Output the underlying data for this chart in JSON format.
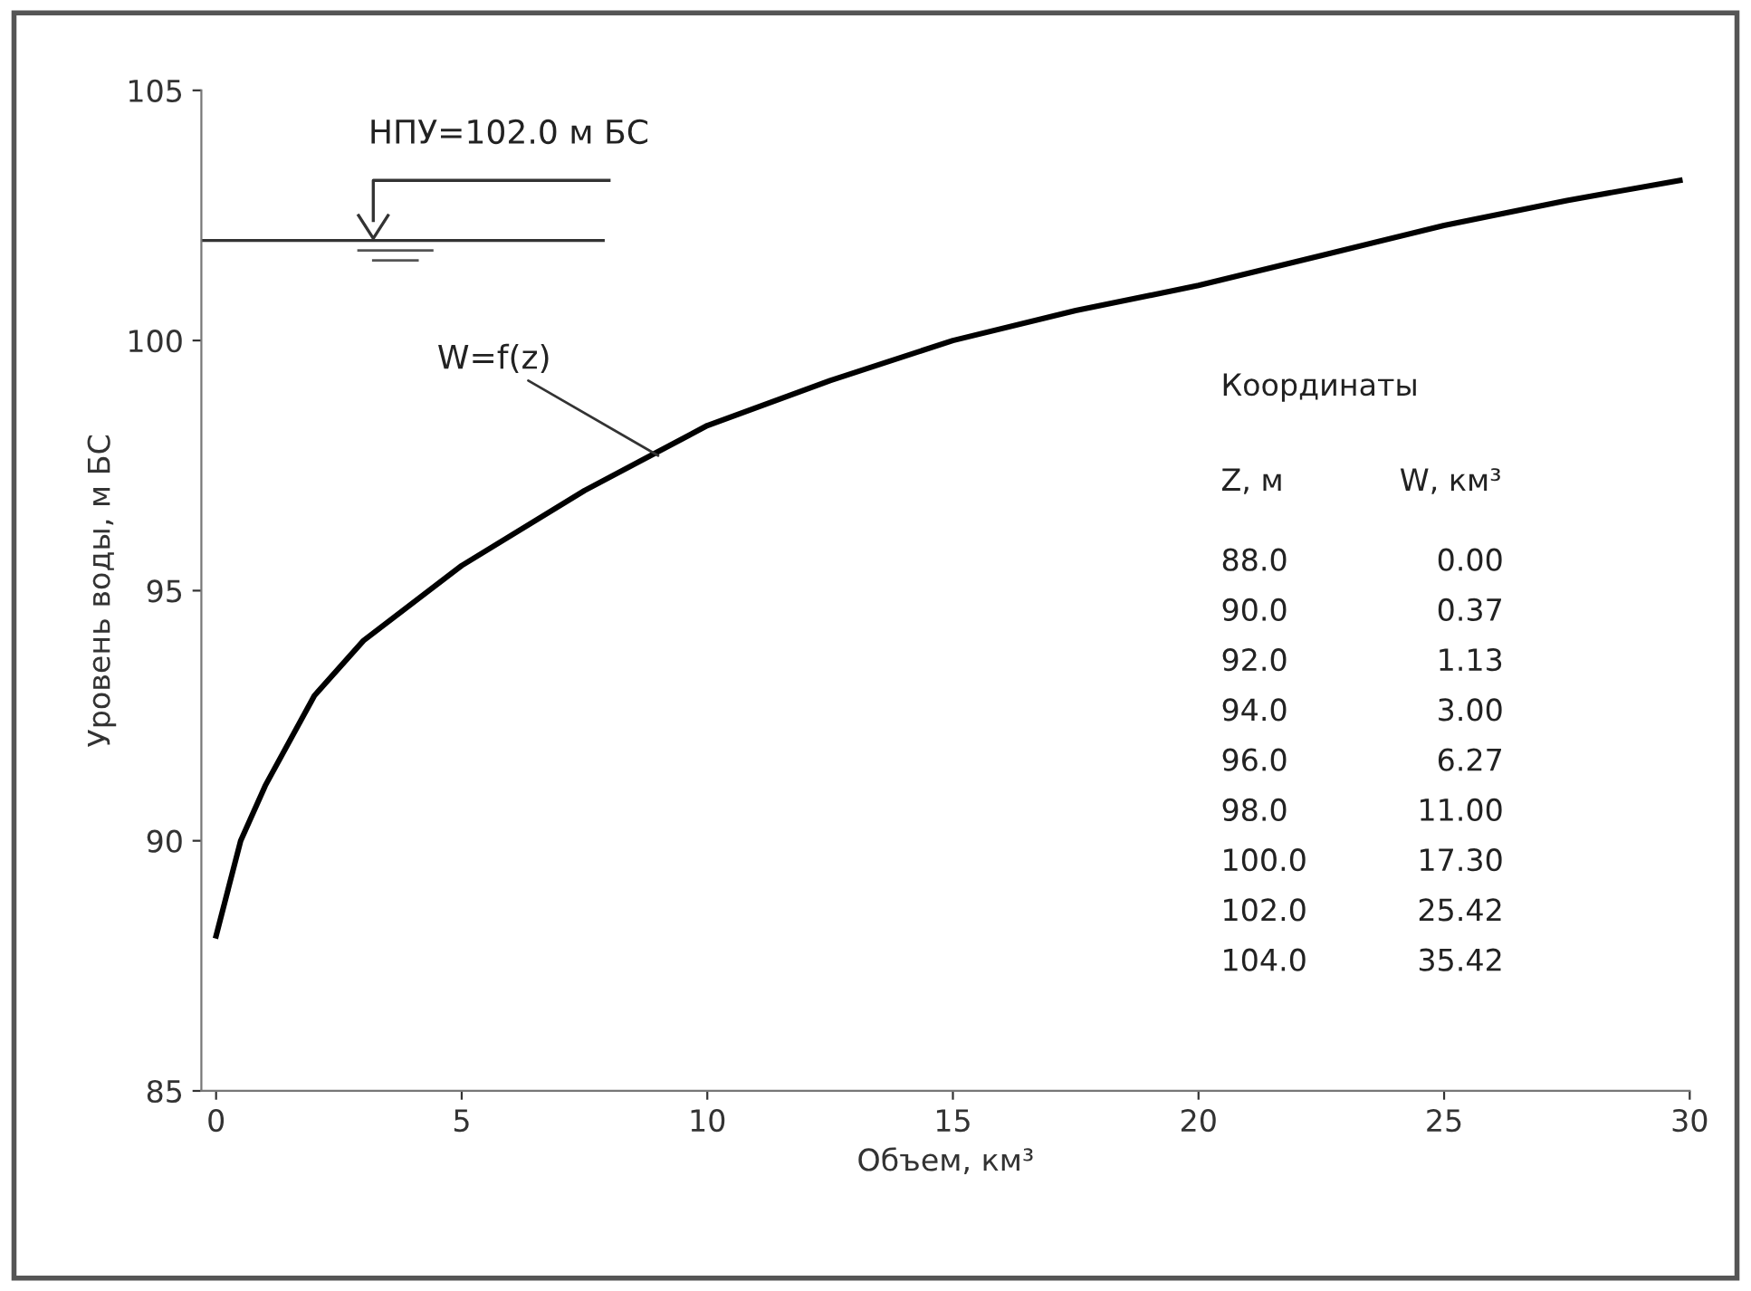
{
  "chart_data": {
    "type": "line",
    "xlabel": "Объем, км³",
    "ylabel": "Уровень воды, м БС",
    "x": [
      0,
      0.5,
      1,
      2,
      3,
      5,
      7.5,
      10,
      12.5,
      15,
      17.5,
      20,
      22.5,
      25,
      27.5,
      29.8
    ],
    "series": [
      {
        "color": "#000000",
        "values": [
          88.1,
          90.0,
          91.1,
          92.9,
          94.0,
          95.5,
          97.0,
          98.3,
          99.2,
          100.0,
          100.6,
          101.1,
          101.7,
          102.3,
          102.8,
          103.2
        ]
      }
    ],
    "xlim": [
      -0.3,
      30
    ],
    "ylim": [
      85,
      105
    ],
    "xticks": [
      0,
      5,
      10,
      15,
      20,
      25,
      30
    ],
    "yticks": [
      85,
      90,
      95,
      100,
      105
    ],
    "grid": false,
    "legend": false,
    "marker": "none",
    "line_style": "solid",
    "ref_lines": [
      {
        "axis": "y",
        "value": 102.0,
        "label": "НПУ=102.0 м БС",
        "color": "#333333"
      }
    ],
    "annotations": [
      {
        "text": "W=f(z)",
        "x": 9,
        "y": 97.7
      },
      "Координаты",
      "Z, м",
      "W, км³",
      "88.0",
      "0.00",
      "90.0",
      "0.37",
      "92.0",
      "1.13",
      "94.0",
      "3.00",
      "96.0",
      "6.27",
      "98.0",
      "11.00",
      "100.0",
      "17.30",
      "102.0",
      "25.42",
      "104.0",
      "35.42"
    ]
  }
}
